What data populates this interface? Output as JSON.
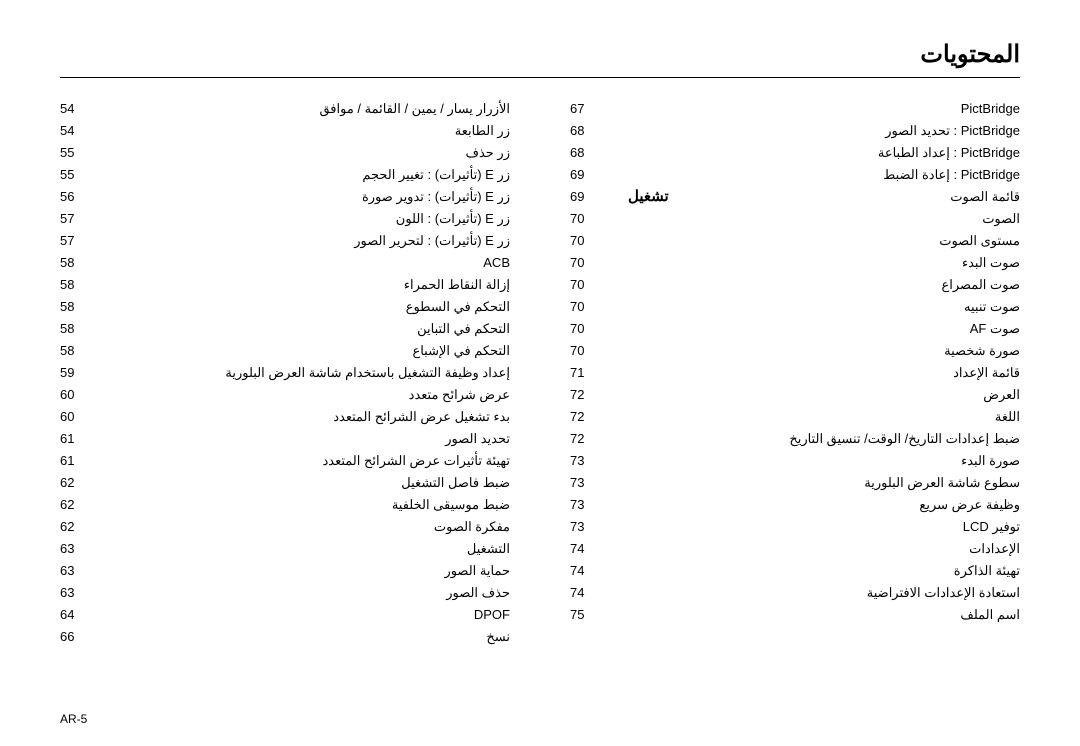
{
  "title": "المحتويات",
  "footer": "AR-5",
  "rightColumn": [
    {
      "num": "54",
      "txt": "الأزرار يسار / يمين / القائمة / موافق"
    },
    {
      "num": "54",
      "txt": "زر الطابعة"
    },
    {
      "num": "55",
      "txt": "زر حذف"
    },
    {
      "num": "55",
      "txt": "زر E (تأثيرات) : تغيير الحجم"
    },
    {
      "num": "56",
      "txt": "زر E (تأثيرات) : تدوير صورة"
    },
    {
      "num": "57",
      "txt": "زر E (تأثيرات) : اللون"
    },
    {
      "num": "57",
      "txt": "زر E (تأثيرات) : لتحرير الصور"
    },
    {
      "num": "58",
      "txt": "ACB"
    },
    {
      "num": "58",
      "txt": "إزالة النقاط الحمراء"
    },
    {
      "num": "58",
      "txt": "التحكم في السطوع"
    },
    {
      "num": "58",
      "txt": "التحكم في التباين"
    },
    {
      "num": "58",
      "txt": "التحكم في الإشباع"
    },
    {
      "num": "59",
      "txt": "إعداد وظيفة التشغيل باستخدام شاشة العرض البلورية"
    },
    {
      "num": "60",
      "txt": "عرض شرائح متعدد"
    },
    {
      "num": "60",
      "txt": "بدء تشغيل عرض الشرائح المتعدد"
    },
    {
      "num": "61",
      "txt": "تحديد الصور"
    },
    {
      "num": "61",
      "txt": "تهيئة تأثيرات عرض الشرائح المتعدد"
    },
    {
      "num": "62",
      "txt": "ضبط فاصل التشغيل"
    },
    {
      "num": "62",
      "txt": "ضبط موسيقى الخلفية"
    },
    {
      "num": "62",
      "txt": "مفكرة الصوت"
    },
    {
      "num": "63",
      "txt": "التشغيل"
    },
    {
      "num": "63",
      "txt": "حماية الصور"
    },
    {
      "num": "63",
      "txt": "حذف الصور"
    },
    {
      "num": "64",
      "txt": "DPOF"
    },
    {
      "num": "66",
      "txt": "نسخ"
    }
  ],
  "leftColumn": [
    {
      "num": "67",
      "txt": "PictBridge"
    },
    {
      "num": "68",
      "txt": "PictBridge : تحديد الصور"
    },
    {
      "num": "68",
      "txt": "PictBridge : إعداد الطباعة"
    },
    {
      "num": "69",
      "txt": "PictBridge : إعادة الضبط"
    },
    {
      "num": "69",
      "txt": "قائمة الصوت",
      "section": true,
      "sectionLabel": "تشغيل"
    },
    {
      "num": "70",
      "txt": "الصوت"
    },
    {
      "num": "70",
      "txt": "مستوى الصوت"
    },
    {
      "num": "70",
      "txt": "صوت البدء"
    },
    {
      "num": "70",
      "txt": "صوت المصراع"
    },
    {
      "num": "70",
      "txt": "صوت تنبيه"
    },
    {
      "num": "70",
      "txt": "صوت AF"
    },
    {
      "num": "70",
      "txt": "صورة شخصية"
    },
    {
      "num": "71",
      "txt": "قائمة الإعداد"
    },
    {
      "num": "72",
      "txt": "العرض"
    },
    {
      "num": "72",
      "txt": "اللغة"
    },
    {
      "num": "72",
      "txt": "ضبط إعدادات التاريخ/ الوقت/ تنسيق التاريخ"
    },
    {
      "num": "73",
      "txt": "صورة البدء"
    },
    {
      "num": "73",
      "txt": "سطوع شاشة العرض البلورية"
    },
    {
      "num": "73",
      "txt": "وظيفة عرض سريع"
    },
    {
      "num": "73",
      "txt": "توفير LCD"
    },
    {
      "num": "74",
      "txt": "الإعدادات"
    },
    {
      "num": "74",
      "txt": "تهيئة الذاكرة"
    },
    {
      "num": "74",
      "txt": "استعادة الإعدادات الافتراضية"
    },
    {
      "num": "75",
      "txt": "اسم الملف"
    }
  ]
}
